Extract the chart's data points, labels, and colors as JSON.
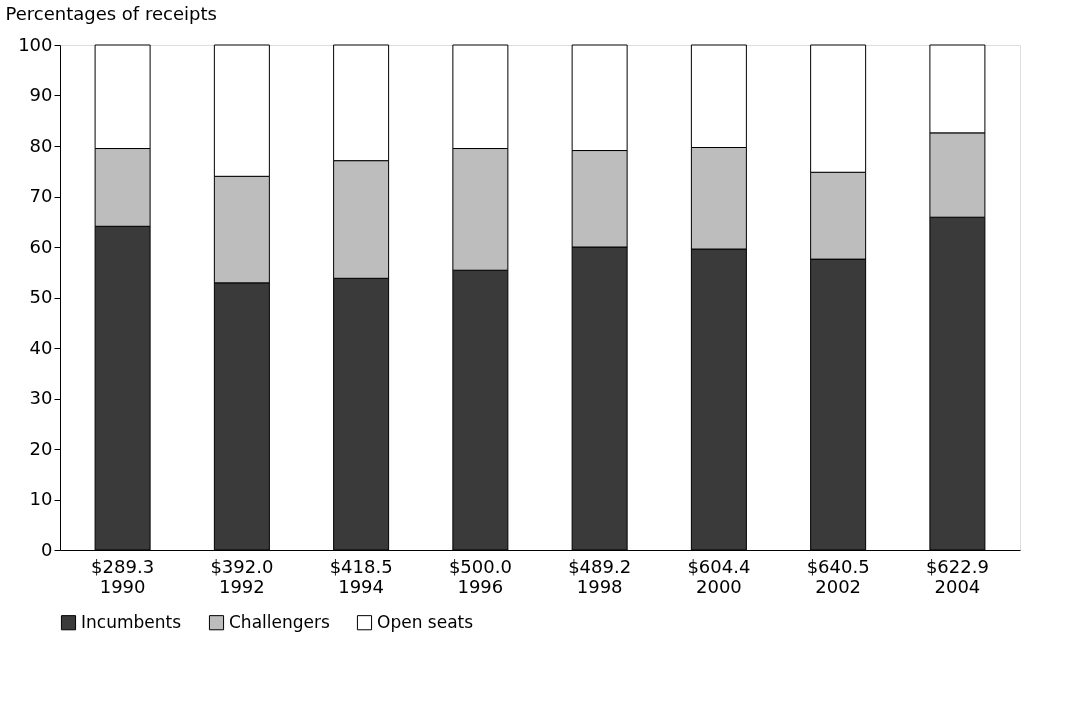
{
  "chart_data": {
    "type": "bar",
    "ylabel": "Percentages of receipts",
    "categories": [
      "$289.3\n1990",
      "$392.0\n1992",
      "$418.5\n1994",
      "$500.0\n1996",
      "$489.2\n1998",
      "$604.4\n2000",
      "$640.5\n2002",
      "$622.9\n2004"
    ],
    "stacked": true,
    "series": [
      {
        "name": "Incumbents",
        "color": "#3a3a3a",
        "values": [
          64.1,
          52.9,
          53.8,
          55.4,
          60.0,
          59.6,
          57.6,
          65.9
        ]
      },
      {
        "name": "Challengers",
        "color": "#bdbdbd",
        "values": [
          15.4,
          21.1,
          23.3,
          24.1,
          19.1,
          20.1,
          17.2,
          16.7
        ]
      },
      {
        "name": "Open seats",
        "color": "#ffffff",
        "values": [
          20.5,
          26.0,
          22.9,
          20.5,
          20.9,
          20.3,
          25.2,
          17.4
        ]
      }
    ],
    "ylim": [
      0,
      100
    ],
    "yticks": [
      0,
      10,
      20,
      30,
      40,
      50,
      60,
      70,
      80,
      90,
      100
    ],
    "grid": false,
    "legend": "bottom"
  }
}
